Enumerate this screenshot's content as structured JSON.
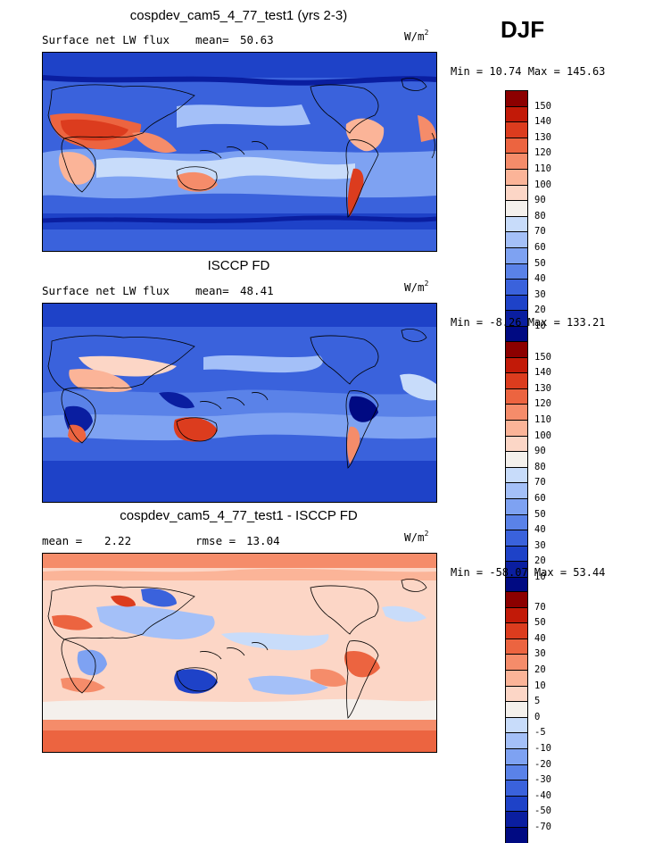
{
  "season": "DJF",
  "panels": [
    {
      "title": "cospdev_cam5_4_77_test1 (yrs 2-3)",
      "left_label": "Surface net LW flux",
      "mean_label": "mean=",
      "mean_value": "50.63",
      "units_base": "W/m",
      "units_exp": "2",
      "minmax": "Min =  10.74 Max = 145.63"
    },
    {
      "title": "ISCCP FD",
      "left_label": "Surface net LW flux",
      "mean_label": "mean=",
      "mean_value": "48.41",
      "units_base": "W/m",
      "units_exp": "2",
      "minmax": "Min =  -8.26 Max = 133.21"
    },
    {
      "title": "cospdev_cam5_4_77_test1 - ISCCP FD",
      "left_label": "mean =",
      "left_value": "2.22",
      "rmse_label": "rmse =",
      "rmse_value": "13.04",
      "units_base": "W/m",
      "units_exp": "2",
      "minmax": "Min = -58.07 Max =  53.44"
    }
  ],
  "chart_data": [
    {
      "type": "heatmap",
      "title": "cospdev_cam5_4_77_test1 (yrs 2-3)",
      "variable": "Surface net LW flux",
      "units": "W/m2",
      "mean": 50.63,
      "min": 10.74,
      "max": 145.63,
      "colorbar_levels": [
        "150",
        "140",
        "130",
        "120",
        "110",
        "100",
        "90",
        "80",
        "70",
        "60",
        "50",
        "40",
        "30",
        "20",
        "10"
      ],
      "colorbar_colors": [
        "#8c0000",
        "#c21a08",
        "#dc3c1e",
        "#ec6440",
        "#f58c6a",
        "#fbb498",
        "#fcd6c6",
        "#f4f0ec",
        "#c8dcfa",
        "#a4c0f8",
        "#7ea2f2",
        "#5a82e8",
        "#3a62dc",
        "#1e42c8",
        "#0a1ea0",
        "#000a82"
      ]
    },
    {
      "type": "heatmap",
      "title": "ISCCP FD",
      "variable": "Surface net LW flux",
      "units": "W/m2",
      "mean": 48.41,
      "min": -8.26,
      "max": 133.21,
      "colorbar_levels": [
        "150",
        "140",
        "130",
        "120",
        "110",
        "100",
        "90",
        "80",
        "70",
        "60",
        "50",
        "40",
        "30",
        "20",
        "10"
      ],
      "colorbar_colors": [
        "#8c0000",
        "#c21a08",
        "#dc3c1e",
        "#ec6440",
        "#f58c6a",
        "#fbb498",
        "#fcd6c6",
        "#f4f0ec",
        "#c8dcfa",
        "#a4c0f8",
        "#7ea2f2",
        "#5a82e8",
        "#3a62dc",
        "#1e42c8",
        "#0a1ea0",
        "#000a82"
      ]
    },
    {
      "type": "heatmap",
      "title": "cospdev_cam5_4_77_test1 - ISCCP FD",
      "units": "W/m2",
      "mean": 2.22,
      "rmse": 13.04,
      "min": -58.07,
      "max": 53.44,
      "colorbar_levels": [
        "70",
        "50",
        "40",
        "30",
        "20",
        "10",
        "5",
        "0",
        "-5",
        "-10",
        "-20",
        "-30",
        "-40",
        "-50",
        "-70"
      ],
      "colorbar_colors": [
        "#8c0000",
        "#c21a08",
        "#dc3c1e",
        "#ec6440",
        "#f58c6a",
        "#fbb498",
        "#fcd6c6",
        "#f4f0ec",
        "#c8dcfa",
        "#a4c0f8",
        "#7ea2f2",
        "#5a82e8",
        "#3a62dc",
        "#1e42c8",
        "#0a1ea0",
        "#000a82"
      ]
    }
  ]
}
